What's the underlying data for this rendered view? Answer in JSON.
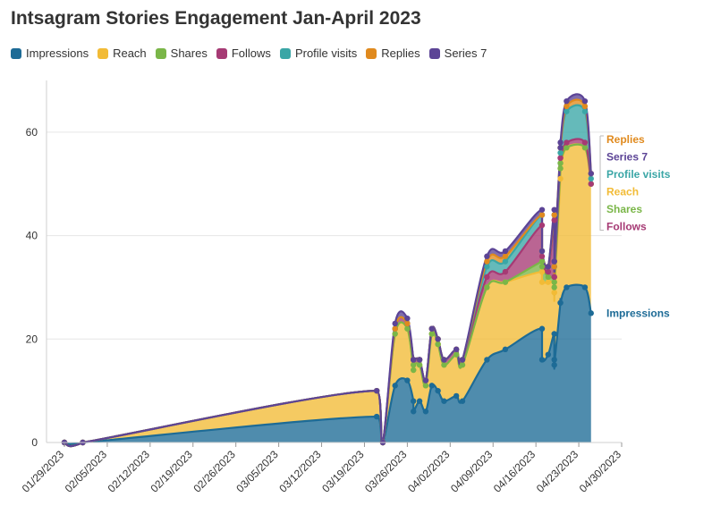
{
  "chart_data": {
    "type": "area",
    "title": "Intsagram Stories Engagement Jan-April 2023",
    "xlabel": "",
    "ylabel": "",
    "ylim": [
      0,
      70
    ],
    "yticks": [
      0,
      20,
      40,
      60
    ],
    "grid": true,
    "legend_position": "top-left",
    "x_ticks": [
      "01/29/2023",
      "02/05/2023",
      "02/12/2023",
      "02/19/2023",
      "02/26/2023",
      "03/05/2023",
      "03/12/2023",
      "03/19/2023",
      "03/26/2023",
      "04/02/2023",
      "04/09/2023",
      "04/16/2023",
      "04/23/2023",
      "04/30/2023"
    ],
    "x": [
      "2023-01-29",
      "2023-02-01",
      "2023-03-21",
      "2023-03-22",
      "2023-03-24",
      "2023-03-26",
      "2023-03-27",
      "2023-03-27",
      "2023-03-28",
      "2023-03-29",
      "2023-03-30",
      "2023-03-31",
      "2023-04-01",
      "2023-04-03",
      "2023-04-04",
      "2023-04-08",
      "2023-04-11",
      "2023-04-17",
      "2023-04-17",
      "2023-04-18",
      "2023-04-19",
      "2023-04-19",
      "2023-04-19",
      "2023-04-20",
      "2023-04-20",
      "2023-04-21",
      "2023-04-24",
      "2023-04-25"
    ],
    "series": [
      {
        "name": "Impressions",
        "color": "#1d6b96",
        "values": [
          0,
          0,
          5,
          0,
          11,
          12,
          8,
          6,
          8,
          6,
          11,
          10,
          8,
          9,
          8,
          16,
          18,
          22,
          16,
          17,
          21,
          16,
          15,
          27,
          27,
          30,
          30,
          25
        ]
      },
      {
        "name": "Reach",
        "color": "#f2bb36",
        "values": [
          0,
          0,
          10,
          0,
          21,
          22,
          14,
          15,
          15,
          11,
          21,
          19,
          15,
          17,
          15,
          30,
          31,
          33,
          31,
          31,
          31,
          29,
          29,
          51,
          53,
          57,
          57,
          50
        ]
      },
      {
        "name": "Shares",
        "color": "#7ab648",
        "values": [
          0,
          0,
          10,
          0,
          21,
          22,
          14,
          15,
          15,
          11,
          21,
          19,
          15,
          17,
          15,
          30,
          31,
          35,
          34,
          32,
          32,
          31,
          30,
          53,
          54,
          57,
          57,
          50
        ]
      },
      {
        "name": "Follows",
        "color": "#a63a74",
        "values": [
          0,
          0,
          10,
          0,
          22,
          23,
          16,
          16,
          16,
          12,
          22,
          20,
          16,
          18,
          16,
          32,
          33,
          42,
          36,
          33,
          43,
          32,
          32,
          55,
          55,
          58,
          58,
          50
        ]
      },
      {
        "name": "Profile visits",
        "color": "#3aa6a6",
        "values": [
          0,
          0,
          10,
          0,
          22,
          23,
          16,
          16,
          16,
          12,
          22,
          20,
          16,
          18,
          16,
          34,
          35,
          44,
          37,
          34,
          44,
          34,
          34,
          56,
          57,
          64,
          64,
          51
        ]
      },
      {
        "name": "Replies",
        "color": "#e08a1e",
        "values": [
          0,
          0,
          10,
          0,
          22,
          23,
          16,
          16,
          16,
          12,
          22,
          20,
          16,
          18,
          16,
          35,
          36,
          44,
          37,
          34,
          44,
          34,
          35,
          57,
          57,
          65,
          65,
          52
        ]
      },
      {
        "name": "Series 7",
        "color": "#5c4496",
        "values": [
          0,
          0,
          10,
          0,
          23,
          24,
          16,
          16,
          16,
          12,
          22,
          20,
          16,
          18,
          16,
          36,
          37,
          45,
          37,
          34,
          45,
          35,
          35,
          57,
          58,
          66,
          66,
          52
        ]
      }
    ],
    "end_labels": [
      "Replies",
      "Series 7",
      "Profile visits",
      "Reach",
      "Shares",
      "Follows",
      "Impressions"
    ]
  }
}
